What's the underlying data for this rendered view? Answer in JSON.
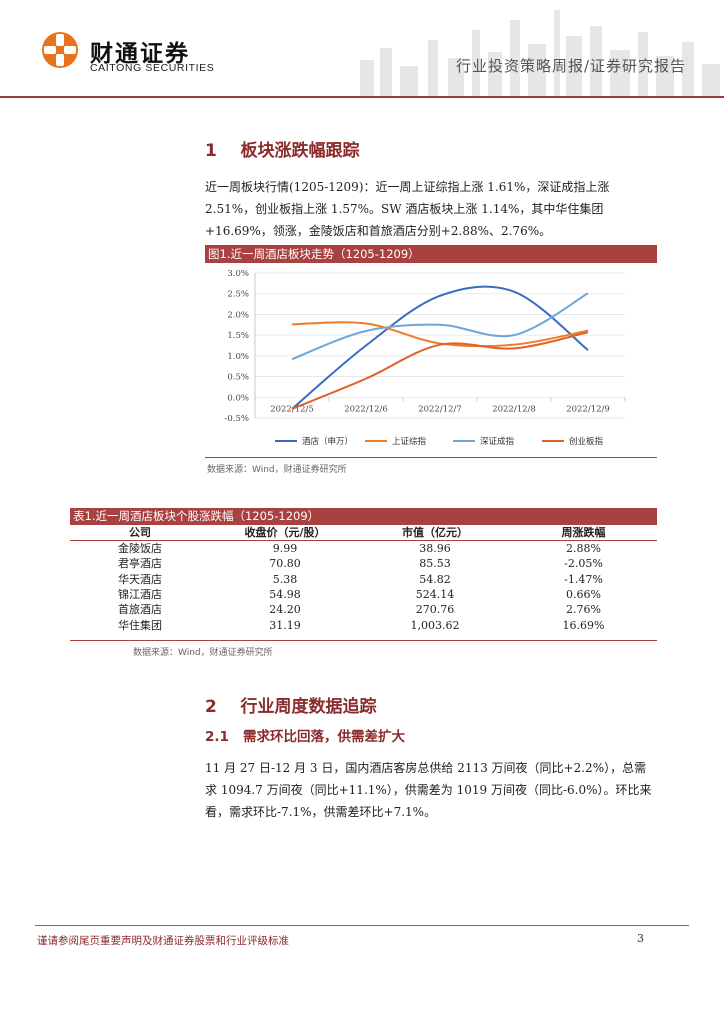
{
  "header": {
    "logo_cn": "财通证券",
    "logo_en": "CAITONG SECURITIES",
    "report_type": "行业投资策略周报/证券研究报告"
  },
  "section1": {
    "number": "1",
    "title": "板块涨跌幅跟踪",
    "paragraph": "近一周板块行情(1205-1209)：近一周上证综指上涨 1.61%，深证成指上涨 2.51%，创业板指上涨 1.57%。SW 酒店板块上涨 1.14%，其中华住集团+16.69%，领涨，金陵饭店和首旅酒店分别+2.88%、2.76%。"
  },
  "figure1": {
    "caption": "图1.近一周酒店板块走势（1205-1209）",
    "source": "数据来源：Wind，财通证券研究所"
  },
  "chart_data": {
    "type": "line",
    "categories": [
      "2022/12/5",
      "2022/12/6",
      "2022/12/7",
      "2022/12/8",
      "2022/12/9"
    ],
    "y_ticks": [
      "3.0%",
      "2.5%",
      "2.0%",
      "1.5%",
      "1.0%",
      "0.5%",
      "0.0%",
      "-0.5%"
    ],
    "ylim": [
      -0.5,
      3.0
    ],
    "series": [
      {
        "name": "酒店（申万）",
        "color": "#3a6bc4",
        "values": [
          -0.28,
          1.25,
          2.45,
          2.55,
          1.14
        ]
      },
      {
        "name": "上证综指",
        "color": "#f07c2a",
        "values": [
          1.76,
          1.78,
          1.3,
          1.27,
          1.61
        ]
      },
      {
        "name": "深证成指",
        "color": "#6ea6d8",
        "values": [
          0.92,
          1.6,
          1.75,
          1.5,
          2.51
        ]
      },
      {
        "name": "创业板指",
        "color": "#e0622a",
        "values": [
          -0.28,
          0.45,
          1.27,
          1.18,
          1.57
        ]
      }
    ],
    "grid": true,
    "legend": "bottom"
  },
  "table1": {
    "caption": "表1.近一周酒店板块个股涨跌幅（1205-1209）",
    "headers": [
      "公司",
      "收盘价（元/股）",
      "市值（亿元）",
      "周涨跌幅"
    ],
    "rows": [
      [
        "金陵饭店",
        "9.99",
        "38.96",
        "2.88%"
      ],
      [
        "君亭酒店",
        "70.80",
        "85.53",
        "-2.05%"
      ],
      [
        "华天酒店",
        "5.38",
        "54.82",
        "-1.47%"
      ],
      [
        "锦江酒店",
        "54.98",
        "524.14",
        "0.66%"
      ],
      [
        "首旅酒店",
        "24.20",
        "270.76",
        "2.76%"
      ],
      [
        "华住集团",
        "31.19",
        "1,003.62",
        "16.69%"
      ]
    ],
    "source": "数据来源：Wind，财通证券研究所"
  },
  "section2": {
    "number": "2",
    "title": "行业周度数据追踪",
    "sub_number": "2.1",
    "sub_title": "需求环比回落，供需差扩大",
    "paragraph": "11 月 27 日-12 月 3 日，国内酒店客房总供给 2113 万间夜（同比+2.2%），总需求 1094.7 万间夜（同比+11.1%），供需差为 1019 万间夜（同比-6.0%）。环比来看，需求环比-7.1%，供需差环比+7.1%。"
  },
  "footer": {
    "disclaimer": "谨请参阅尾页重要声明及财通证券股票和行业评级标准",
    "page_number": "3"
  }
}
